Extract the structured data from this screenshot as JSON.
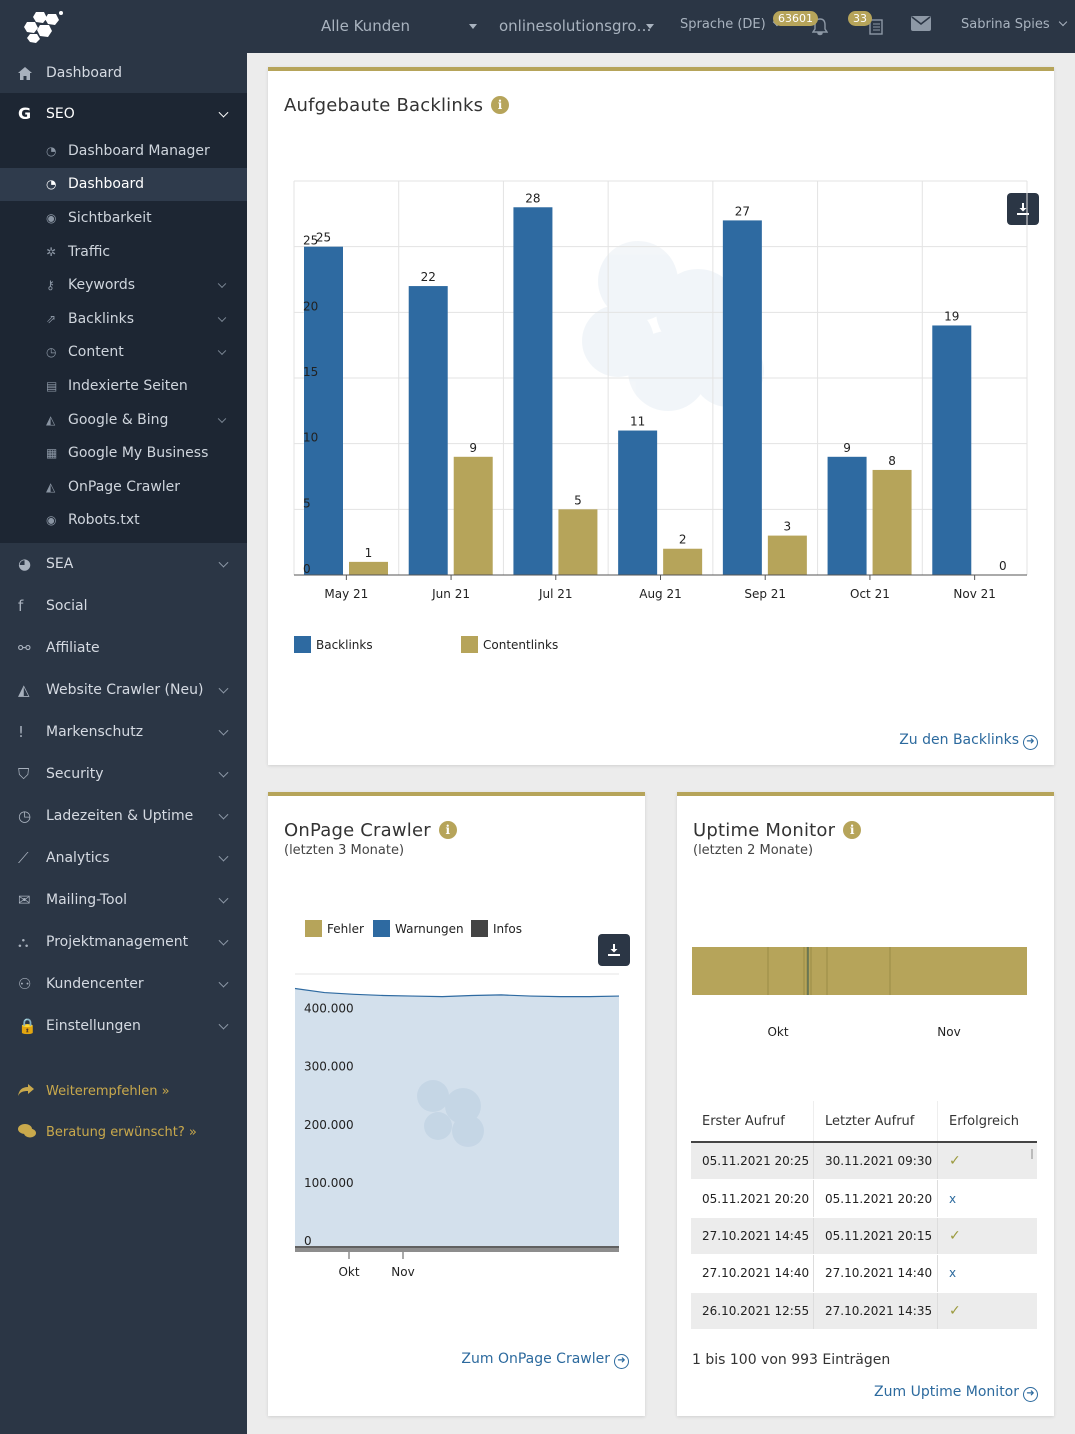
{
  "header": {
    "customer_select": "Alle Kunden",
    "project_select": "onlinesolutionsgro…",
    "language": "Sprache (DE)",
    "notifications_count": "63601",
    "tasks_count": "33",
    "user": "Sabrina Spies"
  },
  "sidebar": {
    "dashboard": "Dashboard",
    "seo": "SEO",
    "seo_items": [
      {
        "label": "Dashboard Manager",
        "icon": "dashboard-icon",
        "chevron": false
      },
      {
        "label": "Dashboard",
        "icon": "dashboard-icon",
        "chevron": false,
        "active": true
      },
      {
        "label": "Sichtbarkeit",
        "icon": "eye-icon",
        "chevron": false
      },
      {
        "label": "Traffic",
        "icon": "gears-icon",
        "chevron": false
      },
      {
        "label": "Keywords",
        "icon": "key-icon",
        "chevron": true
      },
      {
        "label": "Backlinks",
        "icon": "external-link-icon",
        "chevron": true
      },
      {
        "label": "Content",
        "icon": "clock-icon",
        "chevron": true
      },
      {
        "label": "Indexierte Seiten",
        "icon": "file-icon",
        "chevron": false
      },
      {
        "label": "Google & Bing",
        "icon": "area-chart-icon",
        "chevron": true
      },
      {
        "label": "Google My Business",
        "icon": "store-icon",
        "chevron": false
      },
      {
        "label": "OnPage Crawler",
        "icon": "area-chart-icon",
        "chevron": false
      },
      {
        "label": "Robots.txt",
        "icon": "eye-icon",
        "chevron": false
      }
    ],
    "groups": [
      {
        "label": "SEA",
        "icon": "pie-chart-icon",
        "chevron": true
      },
      {
        "label": "Social",
        "icon": "facebook-icon",
        "chevron": false
      },
      {
        "label": "Affiliate",
        "icon": "handshake-icon",
        "chevron": false
      },
      {
        "label": "Website Crawler (Neu)",
        "icon": "area-chart-icon",
        "chevron": true
      },
      {
        "label": "Markenschutz",
        "icon": "exclamation-icon",
        "chevron": true
      },
      {
        "label": "Security",
        "icon": "shield-icon",
        "chevron": true
      },
      {
        "label": "Ladezeiten & Uptime",
        "icon": "clock-icon",
        "chevron": true
      },
      {
        "label": "Analytics",
        "icon": "line-chart-icon",
        "chevron": true
      },
      {
        "label": "Mailing-Tool",
        "icon": "envelope-icon",
        "chevron": true
      },
      {
        "label": "Projektmanagement",
        "icon": "sitemap-icon",
        "chevron": true
      },
      {
        "label": "Kundencenter",
        "icon": "users-icon",
        "chevron": true
      },
      {
        "label": "Einstellungen",
        "icon": "lock-icon",
        "chevron": true
      }
    ],
    "recommend": "Weiterempfehlen »",
    "consulting": "Beratung erwünscht? »"
  },
  "backlinks_card": {
    "title": "Aufgebaute Backlinks",
    "link": "Zu den Backlinks"
  },
  "onpage_card": {
    "title": "OnPage Crawler",
    "subtitle": "(letzten 3 Monate)",
    "link": "Zum OnPage Crawler"
  },
  "uptime_card": {
    "title": "Uptime Monitor",
    "subtitle": "(letzten 2 Monate)",
    "table_headers": [
      "Erster Aufruf",
      "Letzter Aufruf",
      "Erfolgreich"
    ],
    "rows": [
      {
        "first": "05.11.2021 20:25",
        "last": "30.11.2021 09:30",
        "ok": "✓"
      },
      {
        "first": "05.11.2021 20:20",
        "last": "05.11.2021 20:20",
        "ok": "x"
      },
      {
        "first": "27.10.2021 14:45",
        "last": "05.11.2021 20:15",
        "ok": "✓"
      },
      {
        "first": "27.10.2021 14:40",
        "last": "27.10.2021 14:40",
        "ok": "x"
      },
      {
        "first": "26.10.2021 12:55",
        "last": "27.10.2021 14:35",
        "ok": "✓"
      }
    ],
    "count": "1 bis 100 von 993 Einträgen",
    "link": "Zum Uptime Monitor"
  },
  "colors": {
    "accent": "#b6a45a",
    "blue": "#2e6aa1",
    "sidebar": "#2b3645"
  },
  "chart_data": [
    {
      "type": "bar",
      "categories": [
        "May 21",
        "Jun 21",
        "Jul 21",
        "Aug 21",
        "Sep 21",
        "Oct 21",
        "Nov 21"
      ],
      "series": [
        {
          "name": "Backlinks",
          "values": [
            25,
            22,
            28,
            11,
            27,
            9,
            19
          ],
          "color": "#2e6aa1"
        },
        {
          "name": "Contentlinks",
          "values": [
            1,
            9,
            5,
            2,
            3,
            8,
            0
          ],
          "color": "#b6a45a"
        }
      ],
      "y_ticks": [
        "0",
        "5",
        "10",
        "15",
        "20",
        "25"
      ],
      "ylim": [
        0,
        30
      ],
      "grid": true,
      "legend": "bottom-left"
    },
    {
      "type": "area",
      "legend": [
        "Fehler",
        "Warnungen",
        "Infos"
      ],
      "legend_colors": [
        "#b6a45a",
        "#2e6aa1",
        "#444444"
      ],
      "x_ticks": [
        "Okt",
        "Nov"
      ],
      "y_ticks": [
        "0",
        "100.000",
        "200.000",
        "300.000",
        "400.000"
      ],
      "ylim": [
        0,
        470000
      ],
      "series": [
        {
          "name": "Warnungen",
          "values": [
            445000,
            438000,
            435000,
            433000,
            432000,
            431000,
            433000,
            434000,
            432000,
            431000,
            431000,
            432000
          ]
        }
      ]
    },
    {
      "type": "bar",
      "x_ticks": [
        "Okt",
        "Nov"
      ]
    }
  ]
}
